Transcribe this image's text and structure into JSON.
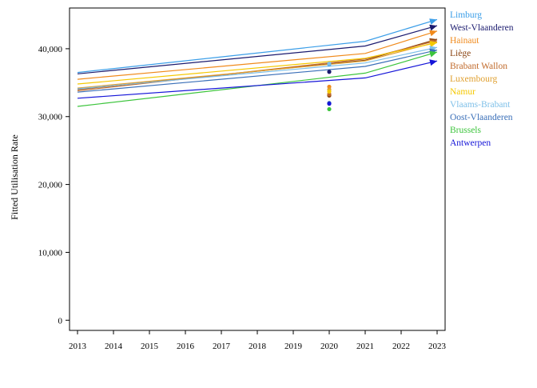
{
  "chart_data": {
    "type": "line",
    "title": "",
    "xlabel": "",
    "ylabel": "Fitted Utilisation Rate",
    "x": [
      2013,
      2021,
      2023
    ],
    "xlim": [
      2013,
      2023
    ],
    "ylim": [
      -1500,
      46000
    ],
    "x_ticks": [
      "2013",
      "2014",
      "2015",
      "2016",
      "2017",
      "2018",
      "2019",
      "2020",
      "2021",
      "2022",
      "2023"
    ],
    "y_ticks": [
      {
        "value": 0,
        "label": "0"
      },
      {
        "value": 10000,
        "label": "10,000"
      },
      {
        "value": 20000,
        "label": "20,000"
      },
      {
        "value": 30000,
        "label": "30,000"
      },
      {
        "value": 40000,
        "label": "40,000"
      }
    ],
    "grid": false,
    "legend_position": "right",
    "marker_x": 2020,
    "series": [
      {
        "name": "Limburg",
        "color": "#3b9ee8",
        "values": [
          36500,
          41100,
          44300
        ],
        "marker_2020": 37700
      },
      {
        "name": "West-Vlaanderen",
        "color": "#1a1a6e",
        "values": [
          36300,
          40400,
          43400
        ],
        "marker_2020": 36600
      },
      {
        "name": "Hainaut",
        "color": "#f08a1c",
        "values": [
          35500,
          39300,
          42600
        ],
        "marker_2020": 34400
      },
      {
        "name": "Liège",
        "color": "#8b4513",
        "values": [
          34000,
          38300,
          41400
        ],
        "marker_2020": 33100
      },
      {
        "name": "Brabant Wallon",
        "color": "#c06a2b",
        "values": [
          33800,
          38500,
          41200
        ],
        "marker_2020": 33300
      },
      {
        "name": "Luxembourg",
        "color": "#e0a030",
        "values": [
          34200,
          38200,
          41000
        ],
        "marker_2020": 34000
      },
      {
        "name": "Namur",
        "color": "#f5c800",
        "values": [
          34800,
          38600,
          40900
        ],
        "marker_2020": 33700
      },
      {
        "name": "Vlaams-Brabant",
        "color": "#7dbfe8",
        "values": [
          34100,
          37900,
          40200
        ],
        "marker_2020": 37800
      },
      {
        "name": "Oost-Vlaanderen",
        "color": "#3a6fb8",
        "values": [
          33600,
          37400,
          39800
        ],
        "marker_2020": 32000
      },
      {
        "name": "Brussels",
        "color": "#3cc43c",
        "values": [
          31500,
          36400,
          39500
        ],
        "marker_2020": 31100
      },
      {
        "name": "Antwerpen",
        "color": "#1515d8",
        "values": [
          32700,
          35700,
          38200
        ],
        "marker_2020": 31900
      }
    ]
  }
}
